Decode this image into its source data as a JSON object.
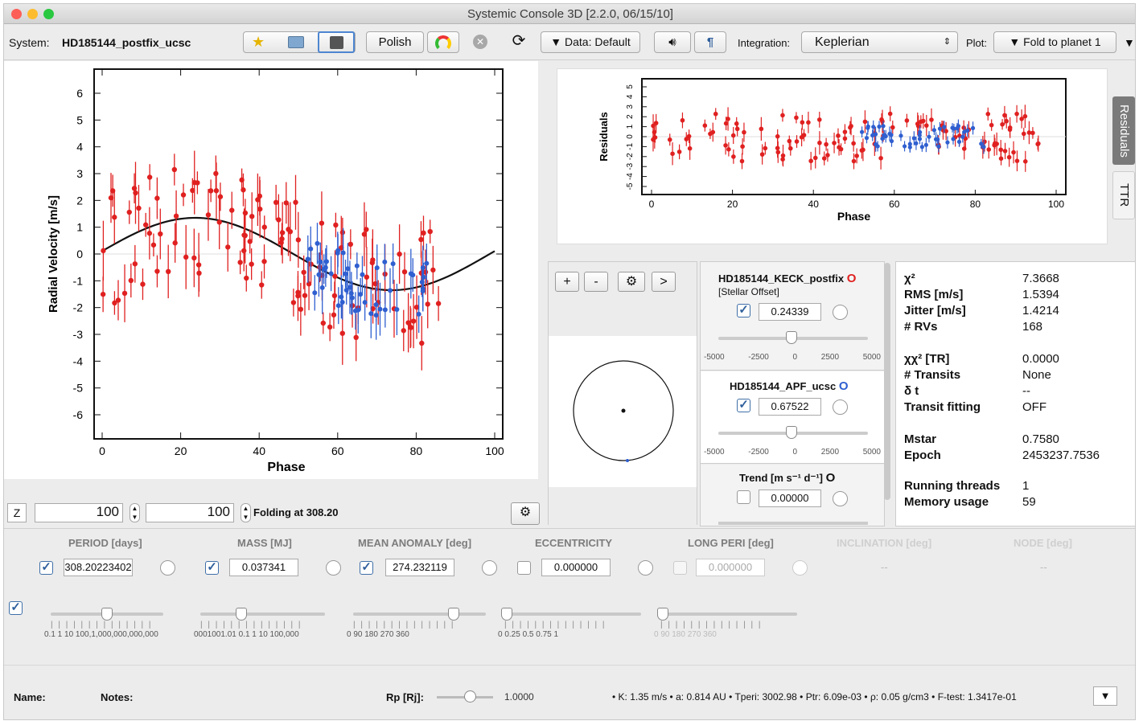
{
  "window": {
    "title": "Systemic Console 3D [2.2.0, 06/15/10]"
  },
  "toolbar": {
    "system_label": "System:",
    "system_name": "HD185144_postfix_ucsc",
    "polish": "Polish",
    "data_menu": "▼ Data: Default",
    "integration_label": "Integration:",
    "integration_value": "Keplerian",
    "plot_label": "Plot:",
    "plot_value": "▼ Fold to planet 1",
    "overflow": "▼"
  },
  "rv_plot": {
    "ylabel": "Radial Velocity [m/s]",
    "xlabel": "Phase",
    "xticks": [
      "0",
      "20",
      "40",
      "60",
      "80",
      "100"
    ],
    "yticks": [
      "6",
      "5",
      "4",
      "3",
      "2",
      "1",
      "0",
      "-1",
      "-2",
      "-3",
      "-4",
      "-5",
      "-6"
    ]
  },
  "res_plot": {
    "ylabel": "Residuals",
    "xlabel": "Phase",
    "xticks": [
      "0",
      "20",
      "40",
      "60",
      "80",
      "100"
    ],
    "yticks": [
      "5",
      "4",
      "3",
      "2",
      "1",
      "0",
      "-1",
      "-2",
      "-3",
      "-4",
      "-5"
    ],
    "tab_residuals": "Residuals",
    "tab_ttr": "TTR"
  },
  "zoom": {
    "z_label": "Z",
    "left_value": "100",
    "right_value": "100",
    "folding": "Folding at 308.20"
  },
  "orbit": {
    "btn_plus": "+",
    "btn_minus": "-",
    "btn_next": ">"
  },
  "datasets": [
    {
      "name": "HD185144_KECK_postfix",
      "marker": "O",
      "sub": "[Stellar Offset]",
      "value": "0.24339",
      "ticks": [
        "-5000",
        "-2500",
        "0",
        "2500",
        "5000"
      ],
      "color": "#e02020"
    },
    {
      "name": "HD185144_APF_ucsc",
      "marker": "O",
      "value": "0.67522",
      "ticks": [
        "-5000",
        "-2500",
        "0",
        "2500",
        "5000"
      ],
      "color": "#2f5fd0"
    }
  ],
  "trend": {
    "label": "Trend [m s⁻¹ d⁻¹]",
    "marker": "O",
    "value": "0.00000"
  },
  "stats": [
    {
      "k": "χ²",
      "v": "7.3668"
    },
    {
      "k": "RMS [m/s]",
      "v": "1.5394"
    },
    {
      "k": "Jitter [m/s]",
      "v": "1.4214"
    },
    {
      "k": "# RVs",
      "v": "168"
    },
    {
      "k": "χχ² [TR]",
      "v": "0.0000"
    },
    {
      "k": "# Transits",
      "v": "None"
    },
    {
      "k": "δ t",
      "v": "--"
    },
    {
      "k": "Transit fitting",
      "v": "OFF"
    },
    {
      "k": "Mstar",
      "v": "0.7580"
    },
    {
      "k": "Epoch",
      "v": "2453237.7536"
    },
    {
      "k": "Running threads",
      "v": "1"
    },
    {
      "k": "Memory usage",
      "v": "59"
    }
  ],
  "params": {
    "headers": [
      "PERIOD [days]",
      "MASS [MJ]",
      "MEAN ANOMALY [deg]",
      "ECCENTRICITY",
      "LONG PERI [deg]",
      "INCLINATION [deg]",
      "NODE [deg]"
    ],
    "values": [
      "308.20223402",
      "0.037341",
      "274.232119",
      "0.000000",
      "0.000000",
      "--",
      "--"
    ],
    "scales": [
      "0.1  1  10  100,1,000,000,000,000",
      "0001001.01 0.1  1  10  100,000",
      "0     90     180     270     360",
      "0    0.25    0.5    0.75    1",
      "0      90      180     270     360"
    ]
  },
  "footer": {
    "name": "Name:",
    "notes": "Notes:",
    "rp": "Rp [Rj]:",
    "rp_value": "1.0000",
    "summary": "• K: 1.35 m/s • a: 0.814 AU • Tperi: 3002.98 • Ptr: 6.09e-03 • ρ: 0.05 g/cm3 • F-test: 1.3417e-01",
    "menu": "▼"
  },
  "colors": {
    "keck": "#e02020",
    "apf": "#2f5fd0"
  }
}
